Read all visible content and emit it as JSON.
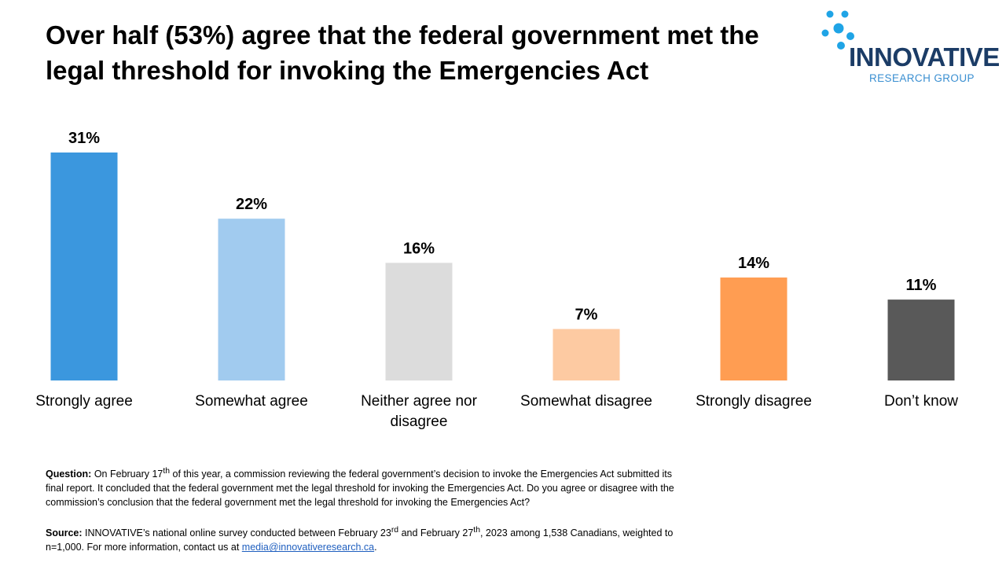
{
  "title": "Over half (53%) agree that the federal government met the legal threshold for invoking the Emergencies Act",
  "logo": {
    "name": "INNOVATIVE",
    "subtitle": "RESEARCH GROUP",
    "dot_color": "#1fa4e6",
    "name_color": "#1b3c66"
  },
  "chart_data": {
    "type": "bar",
    "title": "Over half (53%) agree that the federal government met the legal threshold for invoking the Emergencies Act",
    "categories": [
      "Strongly agree",
      "Somewhat agree",
      "Neither agree nor disagree",
      "Somewhat disagree",
      "Strongly disagree",
      "Don’t know"
    ],
    "values": [
      31,
      22,
      16,
      7,
      14,
      11
    ],
    "value_labels": [
      "31%",
      "22%",
      "16%",
      "7%",
      "14%",
      "11%"
    ],
    "colors": [
      "#3b97de",
      "#a1cbef",
      "#dcdcdc",
      "#fdcaa2",
      "#ff9d52",
      "#595959"
    ],
    "xlabel": "",
    "ylabel": "",
    "ylim": [
      0,
      31
    ],
    "grid": false,
    "legend": "none"
  },
  "notes": {
    "question_label": "Question:",
    "question_text_1": "On February 17",
    "question_sup": "th",
    "question_text_2": " of this year, a commission reviewing the federal government’s decision to invoke the Emergencies Act submitted its final report. It concluded that the federal government met the legal threshold for invoking the Emergencies Act. Do you agree or disagree with the commission’s conclusion that the federal government met the legal threshold for invoking the Emergencies Act?",
    "source_label": "Source:",
    "source_text_1": " INNOVATIVE’s national online survey conducted between February 23",
    "source_sup_1": "rd",
    "source_text_2": " and February 27",
    "source_sup_2": "th",
    "source_text_3": ", 2023 among 1,538 Canadians, weighted to n=1,000. For more information, contact us at ",
    "source_link": "media@innovativeresearch.ca",
    "source_text_4": "."
  }
}
